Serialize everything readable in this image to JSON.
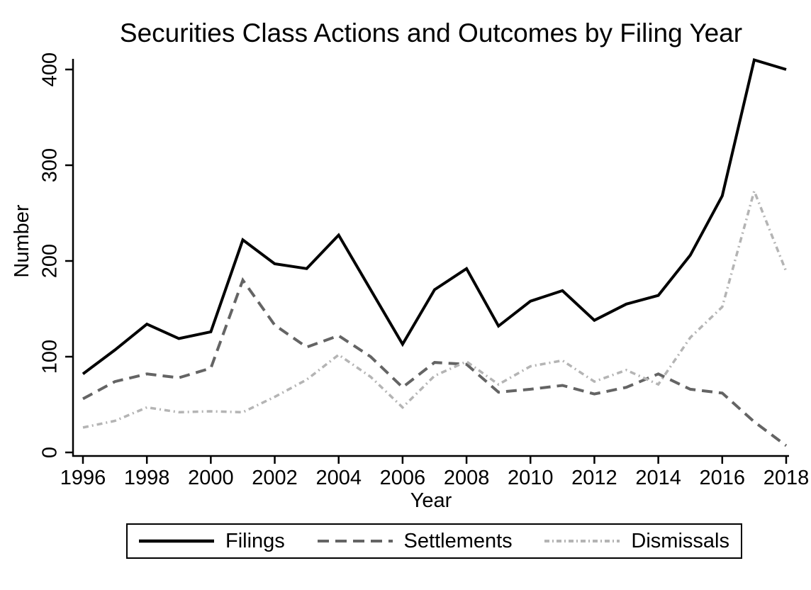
{
  "title": "Securities Class Actions and Outcomes by Filing Year",
  "chart_data": {
    "type": "line",
    "title": "Securities Class Actions and Outcomes by Filing Year",
    "xlabel": "Year",
    "ylabel": "Number",
    "x": [
      1996,
      1997,
      1998,
      1999,
      2000,
      2001,
      2002,
      2003,
      2004,
      2005,
      2006,
      2007,
      2008,
      2009,
      2010,
      2011,
      2012,
      2013,
      2014,
      2015,
      2016,
      2017,
      2018
    ],
    "series": [
      {
        "name": "Filings",
        "color": "#000000",
        "style": "solid",
        "values": [
          82,
          107,
          134,
          119,
          126,
          222,
          197,
          192,
          227,
          170,
          113,
          170,
          192,
          132,
          158,
          169,
          138,
          155,
          164,
          206,
          268,
          410,
          400
        ]
      },
      {
        "name": "Settlements",
        "color": "#646464",
        "style": "dashed",
        "values": [
          56,
          74,
          82,
          78,
          88,
          180,
          133,
          110,
          122,
          100,
          68,
          94,
          92,
          63,
          66,
          70,
          61,
          68,
          82,
          66,
          62,
          32,
          7
        ]
      },
      {
        "name": "Dismissals",
        "color": "#b4b4b4",
        "style": "dashdot",
        "values": [
          26,
          33,
          47,
          42,
          43,
          42,
          58,
          76,
          102,
          79,
          47,
          80,
          95,
          71,
          90,
          96,
          74,
          86,
          71,
          120,
          152,
          273,
          189
        ]
      }
    ],
    "ylim": [
      0,
      400
    ],
    "yticks": [
      0,
      100,
      200,
      300,
      400
    ],
    "xticks": [
      1996,
      1998,
      2000,
      2002,
      2004,
      2006,
      2008,
      2010,
      2012,
      2014,
      2016,
      2018
    ],
    "grid": false,
    "legend_position": "bottom"
  },
  "legend": {
    "items": [
      {
        "label": "Filings"
      },
      {
        "label": "Settlements"
      },
      {
        "label": "Dismissals"
      }
    ]
  }
}
